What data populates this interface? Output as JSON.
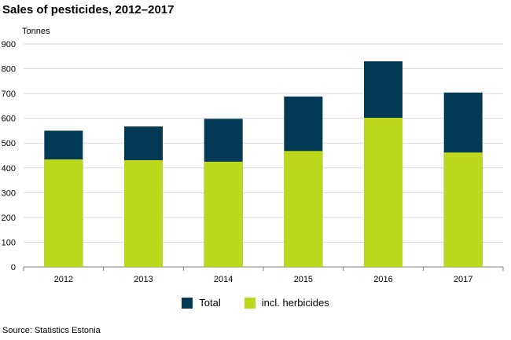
{
  "title": "Sales of pesticides, 2012–2017",
  "source": "Source: Statistics Estonia",
  "colors": {
    "total": "#023a55",
    "herbicides": "#bcd81d",
    "grid": "#d9d9d9",
    "axis": "#808080"
  },
  "chart_data": {
    "type": "bar",
    "title": "Sales of pesticides, 2012–2017",
    "ylabel": "Tonnes",
    "xlabel": "",
    "ylim": [
      0,
      900
    ],
    "yticks": [
      "0",
      "100",
      "200",
      "300",
      "400",
      "500",
      "600",
      "700",
      "800",
      "900"
    ],
    "categories": [
      "2012",
      "2013",
      "2014",
      "2015",
      "2016",
      "2017"
    ],
    "series": [
      {
        "name": "Total",
        "values": [
          550,
          567,
          598,
          688,
          830,
          704
        ]
      },
      {
        "name": "incl. herbicides",
        "values": [
          434,
          431,
          425,
          468,
          602,
          462
        ]
      }
    ],
    "grid": true,
    "legend": "bottom"
  }
}
